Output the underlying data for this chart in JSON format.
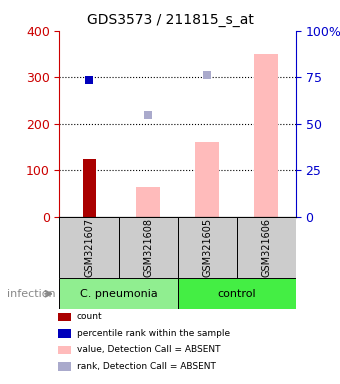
{
  "title": "GDS3573 / 211815_s_at",
  "samples": [
    "GSM321607",
    "GSM321608",
    "GSM321605",
    "GSM321606"
  ],
  "ylim_left": [
    0,
    400
  ],
  "ylim_right": [
    0,
    100
  ],
  "yticks_left": [
    0,
    100,
    200,
    300,
    400
  ],
  "yticks_right": [
    0,
    25,
    50,
    75,
    100
  ],
  "ytick_labels_right": [
    "0",
    "25",
    "50",
    "75",
    "100%"
  ],
  "red_bar": {
    "sample_idx": 0,
    "value": 125
  },
  "pink_bars": [
    {
      "sample_idx": 1,
      "value": 65
    },
    {
      "sample_idx": 2,
      "value": 160
    },
    {
      "sample_idx": 3,
      "value": 350
    }
  ],
  "blue_square": {
    "sample_idx": 0,
    "value": 295
  },
  "light_blue_squares": [
    {
      "sample_idx": 1,
      "value": 220
    },
    {
      "sample_idx": 2,
      "value": 305
    }
  ],
  "colors": {
    "red_bar": "#aa0000",
    "pink_bar": "#ffbbbb",
    "blue_square": "#0000bb",
    "light_blue_square": "#aaaacc",
    "left_axis": "#cc0000",
    "right_axis": "#0000cc",
    "sample_box": "#cccccc",
    "group_cp": "#90ee90",
    "group_ctrl": "#44ee44"
  },
  "legend_items": [
    {
      "label": "count",
      "color": "#aa0000"
    },
    {
      "label": "percentile rank within the sample",
      "color": "#0000bb"
    },
    {
      "label": "value, Detection Call = ABSENT",
      "color": "#ffbbbb"
    },
    {
      "label": "rank, Detection Call = ABSENT",
      "color": "#aaaacc"
    }
  ],
  "infection_label": "infection",
  "bar_width": 0.4,
  "marker_size": 6
}
